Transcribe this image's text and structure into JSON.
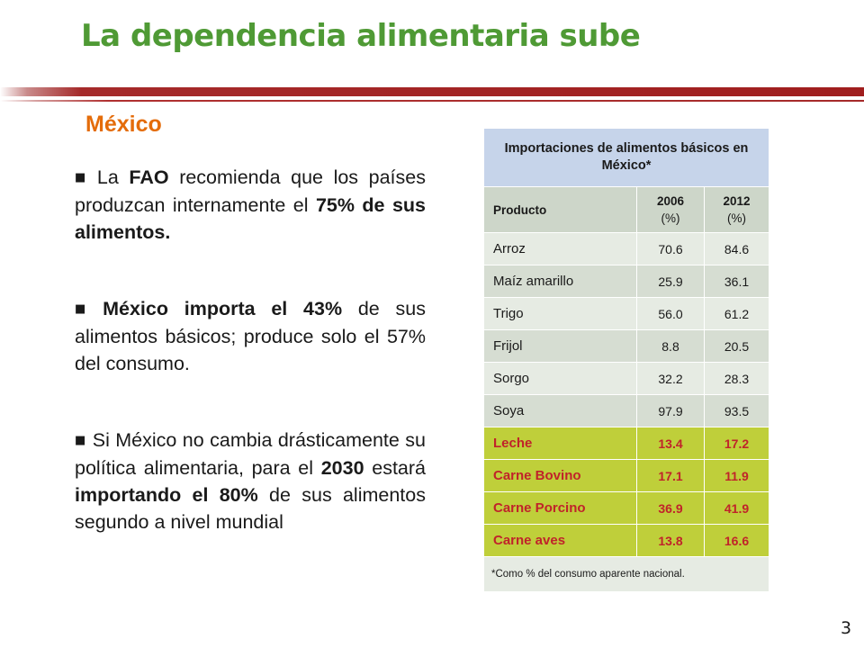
{
  "slide": {
    "title": "La dependencia alimentaria sube",
    "subtitle": "México",
    "page_number": "3",
    "bullet_mark": "§"
  },
  "bullets": [
    [
      {
        "t": "La ",
        "b": false
      },
      {
        "t": "FAO",
        "b": true
      },
      {
        "t": " recomienda que los países produzcan internamente el ",
        "b": false
      },
      {
        "t": "75% de sus alimentos.",
        "b": true
      }
    ],
    [
      {
        "t": "México importa el 43%",
        "b": true
      },
      {
        "t": " de sus alimentos básicos; produce solo el 57% del consumo.",
        "b": false
      }
    ],
    [
      {
        "t": "Si México no cambia drásticamente su política alimentaria, para el ",
        "b": false
      },
      {
        "t": "2030",
        "b": true
      },
      {
        "t": " estará ",
        "b": false
      },
      {
        "t": "importando el 80%",
        "b": true
      },
      {
        "t": " de sus alimentos segundo a nivel mundial",
        "b": false
      }
    ]
  ],
  "table": {
    "title": "Importaciones de alimentos básicos en México*",
    "headers": {
      "product": "Producto",
      "y1": "2006",
      "y1_unit": "(%)",
      "y2": "2012",
      "y2_unit": "(%)"
    },
    "rows": [
      {
        "name": "Arroz",
        "v2006": "70.6",
        "v2012": "84.6",
        "highlight": false
      },
      {
        "name": "Maíz amarillo",
        "v2006": "25.9",
        "v2012": "36.1",
        "highlight": false
      },
      {
        "name": "Trigo",
        "v2006": "56.0",
        "v2012": "61.2",
        "highlight": false
      },
      {
        "name": "Frijol",
        "v2006": "8.8",
        "v2012": "20.5",
        "highlight": false
      },
      {
        "name": "Sorgo",
        "v2006": "32.2",
        "v2012": "28.3",
        "highlight": false
      },
      {
        "name": "Soya",
        "v2006": "97.9",
        "v2012": "93.5",
        "highlight": false
      },
      {
        "name": "Leche",
        "v2006": "13.4",
        "v2012": "17.2",
        "highlight": true
      },
      {
        "name": "Carne Bovino",
        "v2006": "17.1",
        "v2012": "11.9",
        "highlight": true
      },
      {
        "name": "Carne Porcino",
        "v2006": "36.9",
        "v2012": "41.9",
        "highlight": true
      },
      {
        "name": "Carne aves",
        "v2006": "13.8",
        "v2012": "16.6",
        "highlight": true
      }
    ],
    "footnote": "*Como % del consumo aparente nacional."
  },
  "colors": {
    "title": "#4f9a35",
    "subtitle": "#e46c0a",
    "accent_bar": "#a52a2a",
    "table_header": "#c6d4ea",
    "highlight_row": "#bfcf3a",
    "highlight_text": "#c0232a"
  }
}
